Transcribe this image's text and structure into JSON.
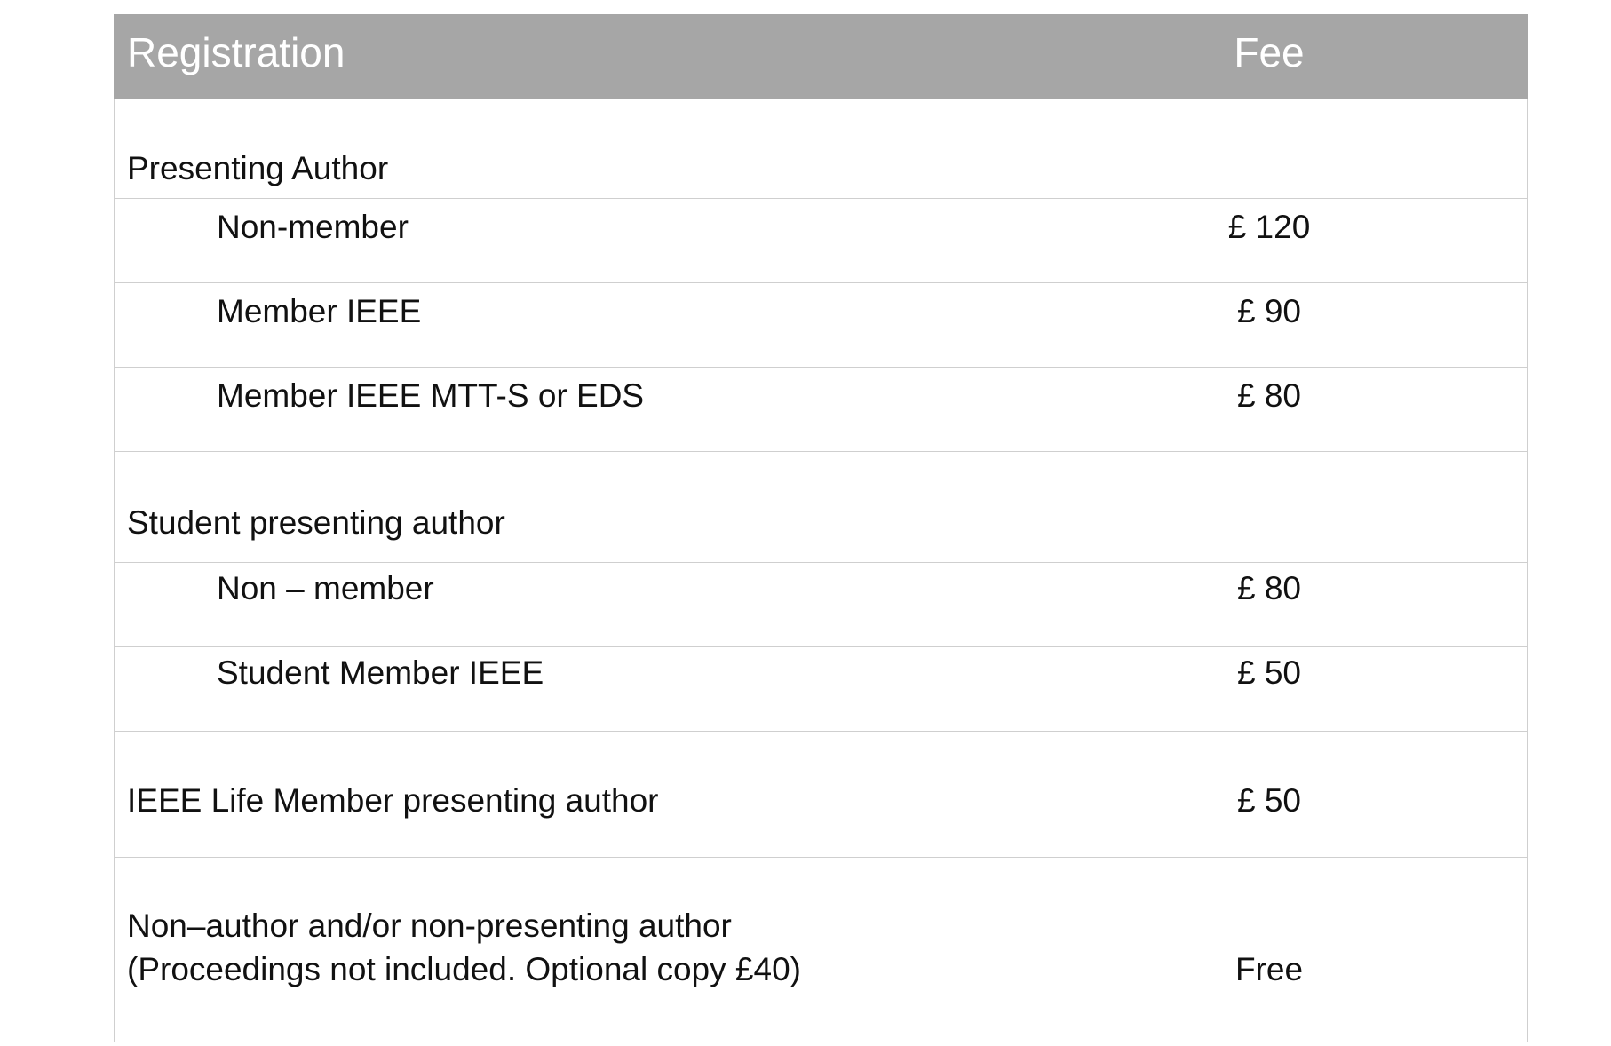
{
  "header": {
    "registration": "Registration",
    "fee": "Fee"
  },
  "rows": [
    {
      "label": "Presenting Author",
      "fee": ""
    },
    {
      "label": "Non-member",
      "fee": "£ 120"
    },
    {
      "label": "Member IEEE",
      "fee": "£ 90"
    },
    {
      "label": "Member IEEE MTT-S or EDS",
      "fee": "£ 80"
    },
    {
      "label": "Student presenting author",
      "fee": ""
    },
    {
      "label": "Non – member",
      "fee": "£ 80"
    },
    {
      "label": "Student Member IEEE",
      "fee": "£ 50"
    },
    {
      "label": "IEEE Life Member presenting author",
      "fee": "£ 50"
    },
    {
      "label": "Non–author and/or non-presenting author",
      "label_line2": "(Proceedings not included. Optional copy £40)",
      "fee": "Free"
    }
  ],
  "colors": {
    "header_bg": "#a6a6a6",
    "header_text": "#ffffff",
    "border": "#cfcfcf"
  }
}
